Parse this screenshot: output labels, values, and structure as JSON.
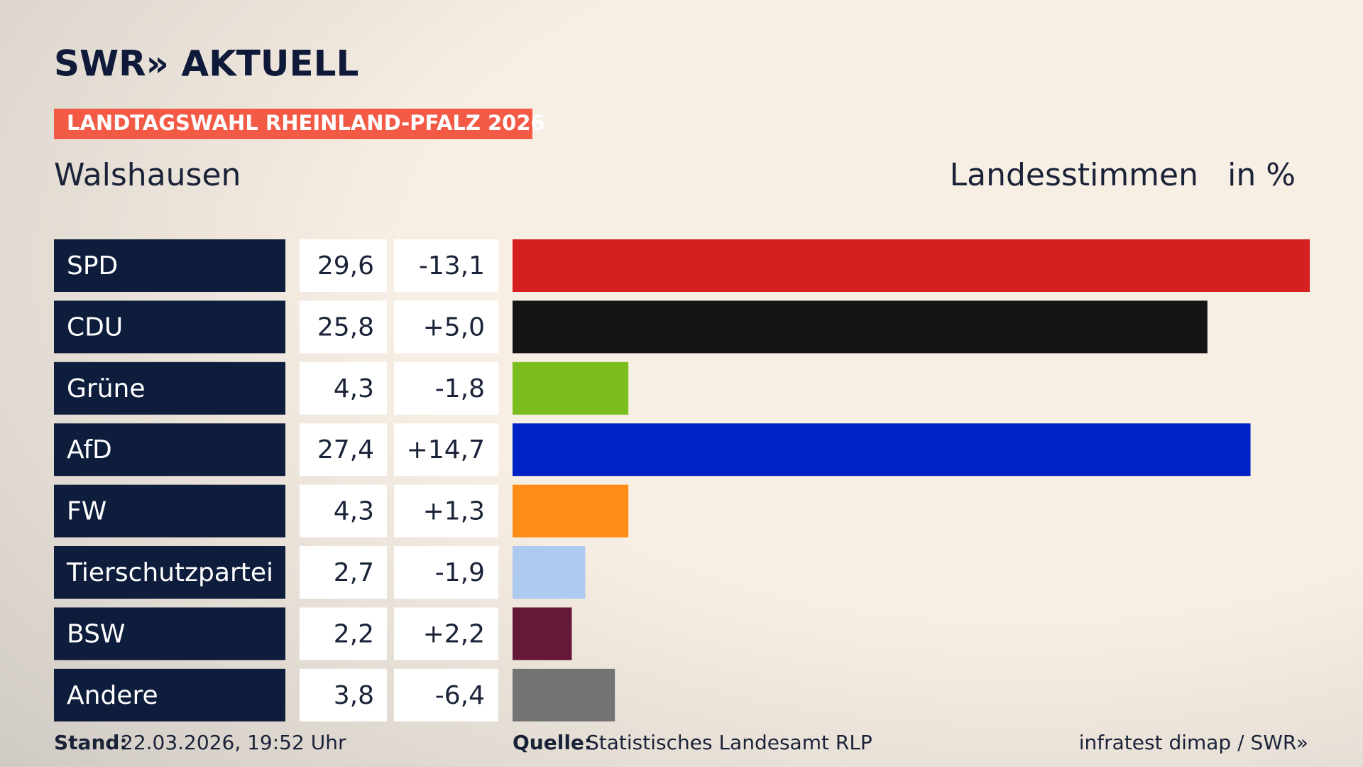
{
  "header": {
    "logo": "SWR» AKTUELL",
    "badge": "LANDTAGSWAHL RHEINLAND-PFALZ 2026",
    "location": "Walshausen",
    "measure": "Landesstimmen",
    "unit": "in %"
  },
  "chart_data": {
    "type": "bar",
    "categories": [
      "SPD",
      "CDU",
      "Grüne",
      "AfD",
      "FW",
      "Tierschutzpartei",
      "BSW",
      "Andere"
    ],
    "values": [
      29.6,
      25.8,
      4.3,
      27.4,
      4.3,
      2.7,
      2.2,
      3.8
    ],
    "value_labels": [
      "29,6",
      "25,8",
      "4,3",
      "27,4",
      "4,3",
      "2,7",
      "2,2",
      "3,8"
    ],
    "changes": [
      -13.1,
      5.0,
      -1.8,
      14.7,
      1.3,
      -1.9,
      2.2,
      -6.4
    ],
    "change_labels": [
      "-13,1",
      "+5,0",
      "-1,8",
      "+14,7",
      "+1,3",
      "-1,9",
      "+2,2",
      "-6,4"
    ],
    "colors": [
      "#d51f20",
      "#141414",
      "#7abd1c",
      "#0021c6",
      "#ff8c14",
      "#aecaf0",
      "#661839",
      "#737373"
    ]
  },
  "footer": {
    "stand_label": "Stand:",
    "stand": "22.03.2026, 19:52 Uhr",
    "source_label": "Quelle:",
    "source": "Statistisches Landesamt RLP",
    "credit": "infratest dimap / SWR»"
  }
}
